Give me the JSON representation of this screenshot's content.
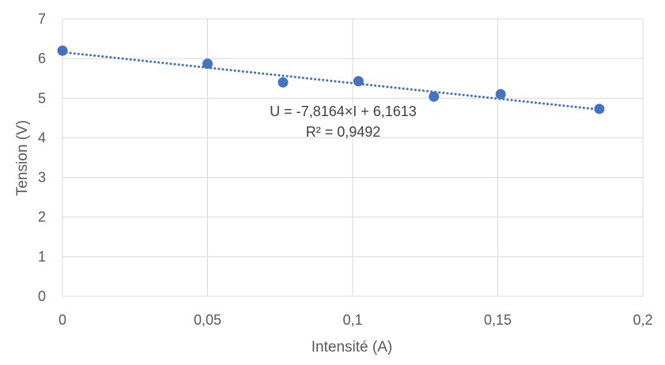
{
  "chart_data": {
    "type": "scatter",
    "xlabel": "Intensité (A)",
    "ylabel": "Tension (V)",
    "xlim": [
      0,
      0.2
    ],
    "ylim": [
      0,
      7
    ],
    "x_ticks": [
      0,
      0.05,
      0.1,
      0.15,
      0.2
    ],
    "x_tick_labels": [
      "0",
      "0,05",
      "0,1",
      "0,15",
      "0,2"
    ],
    "y_ticks": [
      0,
      1,
      2,
      3,
      4,
      5,
      6,
      7
    ],
    "y_tick_labels": [
      "0",
      "1",
      "2",
      "3",
      "4",
      "5",
      "6",
      "7"
    ],
    "grid": true,
    "series": [
      {
        "x": [
          0,
          0.05,
          0.076,
          0.102,
          0.128,
          0.151,
          0.185
        ],
        "y": [
          6.2,
          5.87,
          5.4,
          5.43,
          5.04,
          5.1,
          4.73
        ],
        "color": "#4472C4"
      }
    ],
    "trendline": {
      "type": "linear",
      "slope": -7.8164,
      "intercept": 6.1613,
      "x_range": [
        0,
        0.185
      ],
      "style": "dotted",
      "color": "#4472C4"
    },
    "annotations": {
      "equation": "U = -7,8164×I + 6,1613",
      "r_squared": "R² = 0,9492"
    }
  }
}
